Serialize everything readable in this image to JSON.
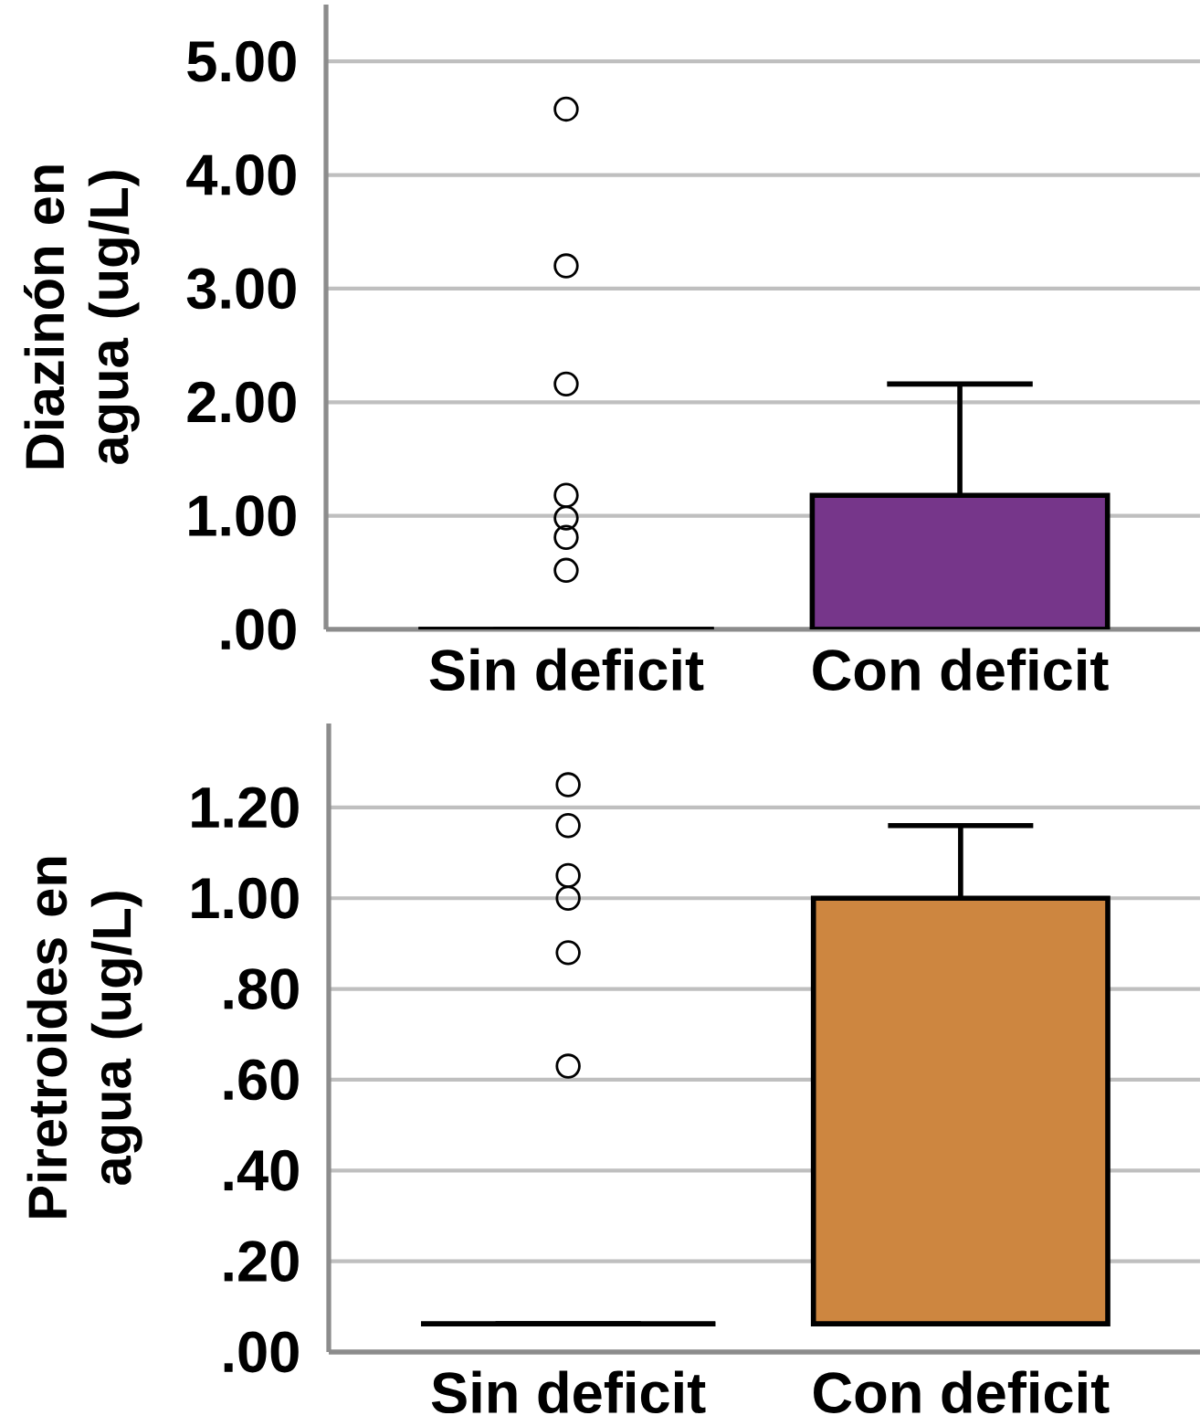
{
  "chart_data": [
    {
      "type": "box",
      "ylabel": "Diazinón en agua (ug/L)",
      "categories": [
        "Sin deficit",
        "Con deficit"
      ],
      "colors": [
        "#000000",
        "#76368a"
      ],
      "boxes": [
        {
          "low": 0,
          "q1": 0,
          "median": 0,
          "q3": 0,
          "high": 0,
          "outliers": [
            0.52,
            0.81,
            0.98,
            1.18,
            2.16,
            3.2,
            4.58
          ]
        },
        {
          "low": 0,
          "q1": 0,
          "median": 0,
          "q3": 1.18,
          "high": 2.16
        }
      ],
      "ylim": [
        0,
        5.5
      ],
      "yticks": [
        {
          "value": 0,
          "label": ".00"
        },
        {
          "value": 1,
          "label": "1.00"
        },
        {
          "value": 2,
          "label": "2.00"
        },
        {
          "value": 3,
          "label": "3.00"
        },
        {
          "value": 4,
          "label": "4.00"
        },
        {
          "value": 5,
          "label": "5.00"
        }
      ],
      "grid": "y"
    },
    {
      "type": "box",
      "ylabel": "Piretroides en agua (ug/L)",
      "categories": [
        "Sin deficit",
        "Con deficit"
      ],
      "colors": [
        "#000000",
        "#cd8640"
      ],
      "boxes": [
        {
          "low": 0.062,
          "q1": 0.062,
          "median": 0.062,
          "q3": 0.062,
          "high": 0.062,
          "outliers": [
            0.63,
            0.88,
            1.0,
            1.05,
            1.16,
            1.25
          ]
        },
        {
          "low": 0.062,
          "q1": 0.062,
          "median": 0.062,
          "q3": 1.0,
          "high": 1.16
        }
      ],
      "ylim": [
        0,
        1.385
      ],
      "yticks": [
        {
          "value": 0,
          "label": ".00"
        },
        {
          "value": 0.2,
          "label": ".20"
        },
        {
          "value": 0.4,
          "label": ".40"
        },
        {
          "value": 0.6,
          "label": ".60"
        },
        {
          "value": 0.8,
          "label": ".80"
        },
        {
          "value": 1,
          "label": "1.00"
        },
        {
          "value": 1.2,
          "label": "1.20"
        }
      ],
      "grid": "y"
    }
  ]
}
